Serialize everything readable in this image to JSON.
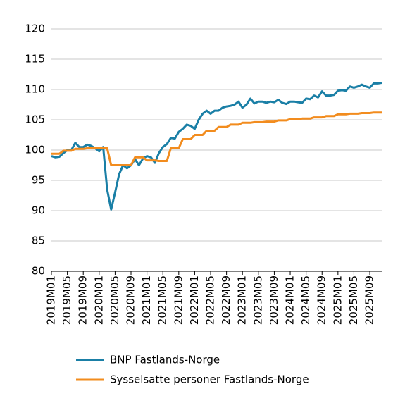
{
  "chart_data": {
    "type": "line",
    "categories": [
      "2019M01",
      null,
      null,
      null,
      "2019M05",
      null,
      null,
      null,
      "2019M09",
      null,
      null,
      null,
      "2020M01",
      null,
      null,
      null,
      "2020M05",
      null,
      null,
      null,
      "2020M09",
      null,
      null,
      null,
      "2021M01",
      null,
      null,
      null,
      "2021M05",
      null,
      null,
      null,
      "2021M09",
      null,
      null,
      null,
      "2022M01",
      null,
      null,
      null,
      "2022M05",
      null,
      null,
      null,
      "2022M09",
      null,
      null,
      null,
      "2023M01",
      null,
      null,
      null,
      "2023M05",
      null,
      null,
      null,
      "2023M09",
      null,
      null,
      null,
      "2024M01",
      null,
      null,
      null,
      "2024M05",
      null,
      null,
      null,
      "2024M09",
      null,
      null,
      null,
      "2025M01",
      null,
      null,
      null,
      "2025M05",
      null,
      null,
      null,
      "2025M09",
      null,
      null,
      null
    ],
    "series": [
      {
        "name": "BNP Fastlands-Norge",
        "color": "#1a7fa6",
        "values": [
          99.0,
          98.8,
          98.9,
          99.5,
          100.0,
          100.0,
          101.2,
          100.5,
          100.5,
          100.9,
          100.7,
          100.3,
          99.8,
          100.5,
          93.5,
          90.2,
          93.0,
          96.0,
          97.5,
          97.0,
          97.5,
          98.5,
          97.5,
          98.6,
          99.0,
          98.8,
          97.9,
          99.5,
          100.5,
          101.0,
          102.0,
          101.9,
          103.0,
          103.5,
          104.2,
          104.0,
          103.5,
          105.0,
          106.0,
          106.5,
          106.0,
          106.5,
          106.5,
          107.0,
          107.2,
          107.3,
          107.5,
          108.0,
          107.0,
          107.5,
          108.5,
          107.7,
          108.0,
          108.0,
          107.8,
          108.0,
          107.9,
          108.3,
          107.8,
          107.6,
          108.0,
          108.0,
          107.9,
          107.8,
          108.5,
          108.4,
          109.0,
          108.7,
          109.7,
          109.0,
          109.0,
          109.1,
          109.8,
          109.9,
          109.8,
          110.5,
          110.3,
          110.5,
          110.8,
          110.5,
          110.3,
          111.0,
          111.0,
          111.1
        ]
      },
      {
        "name": "Sysselsatte personer Fastlands-Norge",
        "color": "#f28c1e",
        "values": [
          99.4,
          99.4,
          99.4,
          99.9,
          99.9,
          99.9,
          100.2,
          100.2,
          100.2,
          100.3,
          100.3,
          100.3,
          100.3,
          100.3,
          100.3,
          97.5,
          97.5,
          97.5,
          97.5,
          97.5,
          97.5,
          98.8,
          98.8,
          98.8,
          98.3,
          98.3,
          98.3,
          98.2,
          98.2,
          98.2,
          100.3,
          100.3,
          100.3,
          101.8,
          101.8,
          101.8,
          102.5,
          102.5,
          102.5,
          103.2,
          103.2,
          103.2,
          103.8,
          103.8,
          103.8,
          104.2,
          104.2,
          104.2,
          104.5,
          104.5,
          104.5,
          104.6,
          104.6,
          104.6,
          104.7,
          104.7,
          104.7,
          104.9,
          104.9,
          104.9,
          105.1,
          105.1,
          105.1,
          105.2,
          105.2,
          105.2,
          105.4,
          105.4,
          105.4,
          105.6,
          105.6,
          105.6,
          105.9,
          105.9,
          105.9,
          106.0,
          106.0,
          106.0,
          106.1,
          106.1,
          106.1,
          106.2,
          106.2,
          106.2
        ]
      }
    ],
    "ylim": [
      80,
      120
    ],
    "yticks": [
      80,
      85,
      90,
      95,
      100,
      105,
      110,
      115,
      120
    ],
    "grid": true,
    "legend": "bottom"
  }
}
